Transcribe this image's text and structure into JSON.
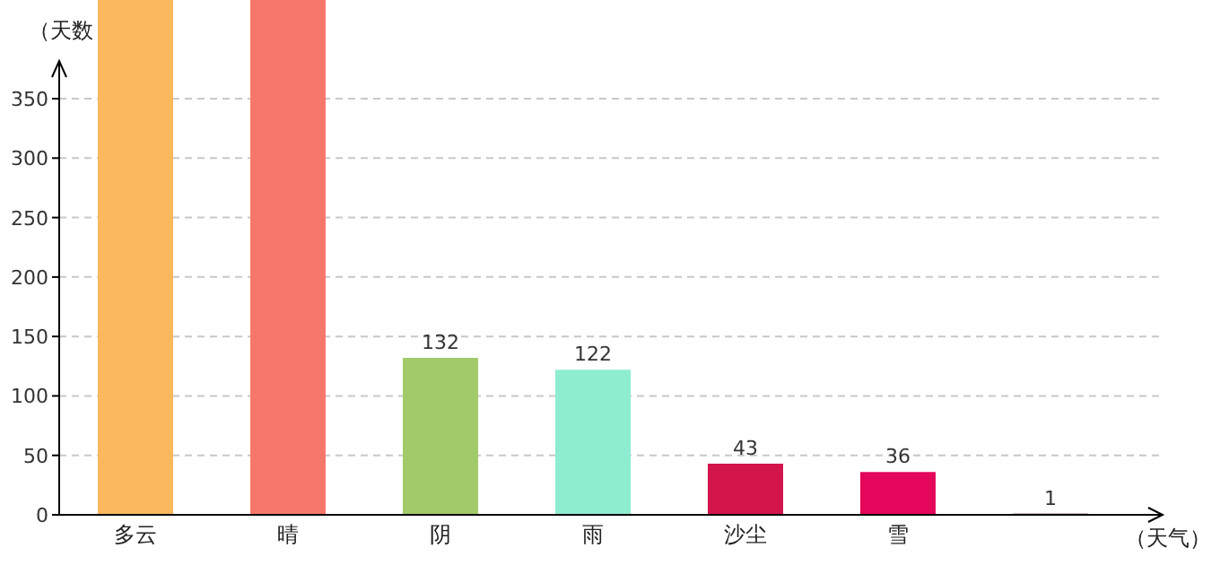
{
  "chart_data": {
    "type": "bar",
    "ylabel": "（天数",
    "xlabel": "（天气）",
    "categories": [
      "多云",
      "晴",
      "阴",
      "雨",
      "沙尘",
      "雪",
      null
    ],
    "values": [
      433,
      433,
      132,
      122,
      43,
      36,
      1
    ],
    "value_labels": [
      null,
      null,
      "132",
      "122",
      "43",
      "36",
      "1"
    ],
    "colors": [
      "#fbb85d",
      "#f7776b",
      "#a1cb6a",
      "#8eecd1",
      "#d3154c",
      "#e3065a",
      "#8b1a6b"
    ],
    "ylim": [
      0,
      433
    ],
    "yticks": [
      0,
      50,
      100,
      150,
      200,
      250,
      300,
      350
    ],
    "grid": "y"
  }
}
